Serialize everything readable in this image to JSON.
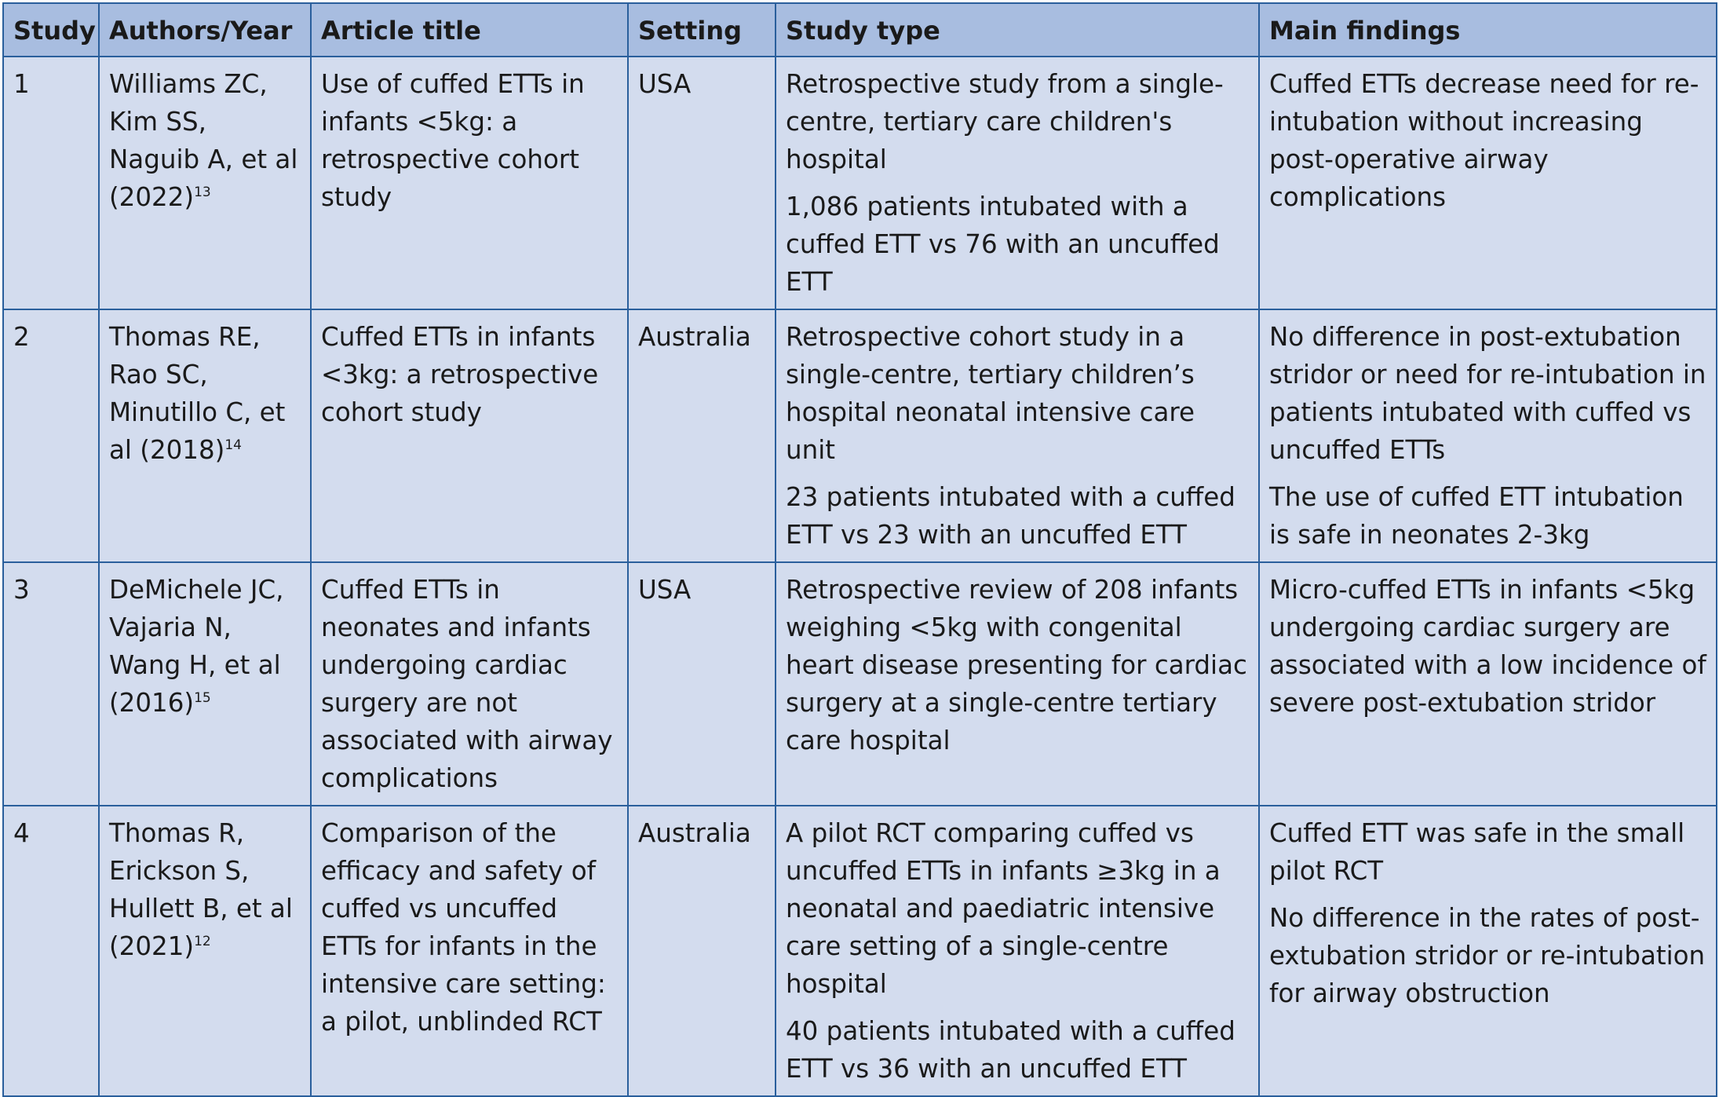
{
  "table": {
    "headers": [
      "Study",
      "Authors/Year",
      "Article title",
      "Setting",
      "Study type",
      "Main findings"
    ],
    "rows": [
      {
        "study": "1",
        "authors": "Williams ZC, Kim SS, Naguib A, et al (2022)",
        "ref": "13",
        "title": "Use of cuffed ETTs in infants <5kg: a retrospective cohort study",
        "setting": "USA",
        "study_type": [
          "Retrospective study from a single-centre, tertiary care children's hospital",
          "1,086 patients intubated with a cuffed ETT vs 76 with an uncuffed ETT"
        ],
        "findings": [
          "Cuffed ETTs decrease need for re-intubation without increasing post-operative airway complications"
        ]
      },
      {
        "study": "2",
        "authors": "Thomas RE, Rao SC, Minutillo C, et al (2018)",
        "ref": "14",
        "title": "Cuffed ETTs in infants <3kg: a retrospective cohort study",
        "setting": "Australia",
        "study_type": [
          "Retrospective cohort study in a single-centre, tertiary children’s hospital neonatal intensive care unit",
          "23 patients intubated with a cuffed ETT vs 23 with an uncuffed ETT"
        ],
        "findings": [
          "No difference in post-extubation stridor or need for re-intubation in patients intubated with cuffed vs uncuffed ETTs",
          "The use of cuffed ETT intubation is safe in neonates 2-3kg"
        ]
      },
      {
        "study": "3",
        "authors": "DeMichele JC, Vajaria N, Wang H, et al (2016)",
        "ref": "15",
        "title": "Cuffed ETTs in neonates and infants undergoing cardiac surgery are not associated with airway complications",
        "setting": "USA",
        "study_type": [
          "Retrospective review of 208 infants weighing <5kg with congenital heart disease presenting for cardiac surgery at a single-centre tertiary care hospital"
        ],
        "findings": [
          "Micro-cuffed ETTs in infants <5kg undergoing cardiac surgery are associated with a low incidence of severe post-extubation stridor"
        ]
      },
      {
        "study": "4",
        "authors": "Thomas R, Erickson S, Hullett B, et al (2021)",
        "ref": "12",
        "title": "Comparison of the efficacy and safety of cuffed vs uncuffed ETTs for infants in the intensive care setting: a pilot, unblinded RCT",
        "setting": "Australia",
        "study_type": [
          "A pilot RCT comparing cuffed vs uncuffed ETTs in infants ≥3kg in a neonatal and paediatric intensive care setting of a single-centre hospital",
          "40 patients intubated with a cuffed ETT vs 36 with an uncuffed ETT"
        ],
        "findings": [
          "Cuffed ETT was safe in the small pilot RCT",
          "No difference in the rates of post-extubation stridor or re-intubation for airway obstruction"
        ]
      }
    ]
  }
}
